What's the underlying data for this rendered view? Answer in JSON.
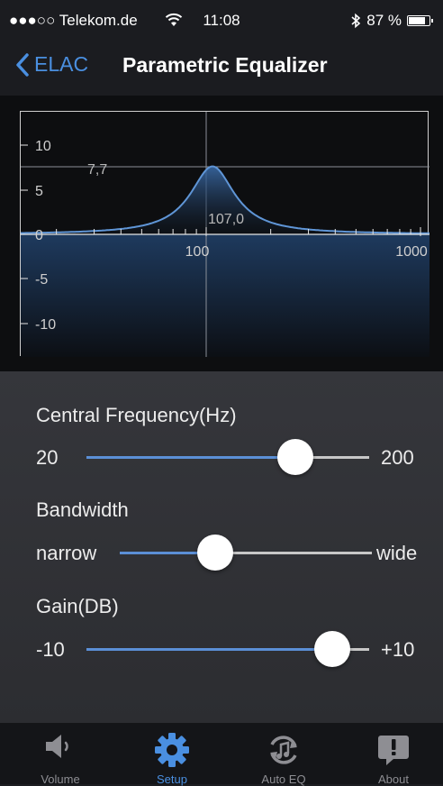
{
  "status": {
    "carrier": "●●●○○ Telekom.de",
    "time": "11:08",
    "battery": "87 %",
    "battery_level": 0.87
  },
  "nav": {
    "back_label": "ELAC",
    "title": "Parametric Equalizer"
  },
  "graph": {
    "y_ticks": [
      "10",
      "5",
      "0",
      "-5",
      "-10"
    ],
    "x_ticks": [
      "100",
      "1000"
    ],
    "peak_gain_label": "7,7",
    "peak_freq_label": "107,0",
    "peak_freq": 107.0,
    "peak_gain": 7.7,
    "colors": {
      "curve": "#5f95d6",
      "fill": "#2d4f80"
    }
  },
  "controls": {
    "frequency": {
      "label": "Central Frequency(Hz)",
      "min": "20",
      "max": "200",
      "value": 0.74
    },
    "bandwidth": {
      "label": "Bandwidth",
      "min": "narrow",
      "max": "wide",
      "value": 0.38
    },
    "gain": {
      "label": "Gain(DB)",
      "min": "-10",
      "max": "+10",
      "value": 0.87
    }
  },
  "tabs": [
    {
      "label": "Volume",
      "icon": "speaker-icon",
      "active": false
    },
    {
      "label": "Setup",
      "icon": "gear-icon",
      "active": true
    },
    {
      "label": "Auto EQ",
      "icon": "auto-eq-icon",
      "active": false
    },
    {
      "label": "About",
      "icon": "info-bubble-icon",
      "active": false
    }
  ],
  "colors": {
    "accent": "#4a8fe0",
    "inactive": "#8e8e93"
  }
}
